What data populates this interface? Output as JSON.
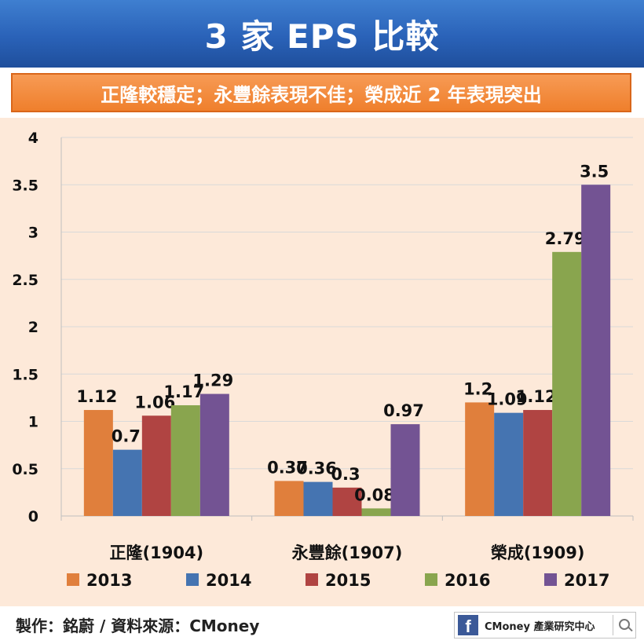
{
  "header": {
    "title": "3 家 EPS 比較",
    "subtitle": "正隆較穩定；永豐餘表現不佳；榮成近 2 年表現突出"
  },
  "footer": {
    "credit": "製作：銘蔚 / 資料來源：CMoney",
    "badge_text": "CMoney 產業研究中心",
    "badge_logo": "f"
  },
  "chart_data": {
    "type": "bar",
    "categories": [
      "正隆(1904)",
      "永豐餘(1907)",
      "榮成(1909)"
    ],
    "series": [
      {
        "name": "2013",
        "color": "#e07f3c",
        "values": [
          1.12,
          0.37,
          1.2
        ]
      },
      {
        "name": "2014",
        "color": "#4574b1",
        "values": [
          0.7,
          0.36,
          1.09
        ]
      },
      {
        "name": "2015",
        "color": "#b04442",
        "values": [
          1.06,
          0.3,
          1.12
        ]
      },
      {
        "name": "2016",
        "color": "#89a54e",
        "values": [
          1.17,
          0.08,
          2.79
        ]
      },
      {
        "name": "2017",
        "color": "#735393",
        "values": [
          1.29,
          0.97,
          3.5
        ]
      }
    ],
    "y_ticks": [
      "0",
      "0.5",
      "1",
      "1.5",
      "2",
      "2.5",
      "3",
      "3.5",
      "4"
    ],
    "ylim": [
      0,
      4
    ],
    "grid": true,
    "legend": "bottom",
    "data_labels": true
  }
}
